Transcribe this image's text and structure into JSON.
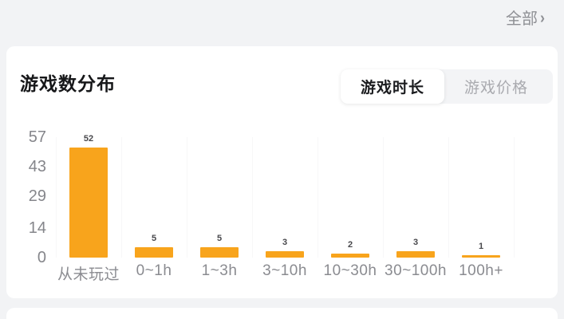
{
  "header": {
    "all_link": "全部",
    "chevron": "›"
  },
  "card": {
    "title": "游戏数分布",
    "tabs": [
      {
        "label": "游戏时长",
        "active": true
      },
      {
        "label": "游戏价格",
        "active": false
      }
    ]
  },
  "chart_data": {
    "type": "bar",
    "title": "游戏数分布",
    "categories": [
      "从未玩过",
      "0~1h",
      "1~3h",
      "3~10h",
      "10~30h",
      "30~100h",
      "100h+"
    ],
    "values": [
      52,
      5,
      5,
      3,
      2,
      3,
      1
    ],
    "xlabel": "",
    "ylabel": "",
    "ylim": [
      0,
      57
    ],
    "yticks": [
      0,
      14,
      29,
      43,
      57
    ],
    "bar_color": "#F8A41C",
    "grid": "faint-vertical-split-lines",
    "legend": "none",
    "value_labels": true
  },
  "colors": {
    "page_background": "#F2F3F5",
    "card_background": "#FFFFFF",
    "accent_orange": "#F8A41C",
    "title_text": "#17181A",
    "axis_text": "#85868B",
    "tab_inactive_text": "#A9AAAF",
    "link_text": "#8F9095"
  }
}
